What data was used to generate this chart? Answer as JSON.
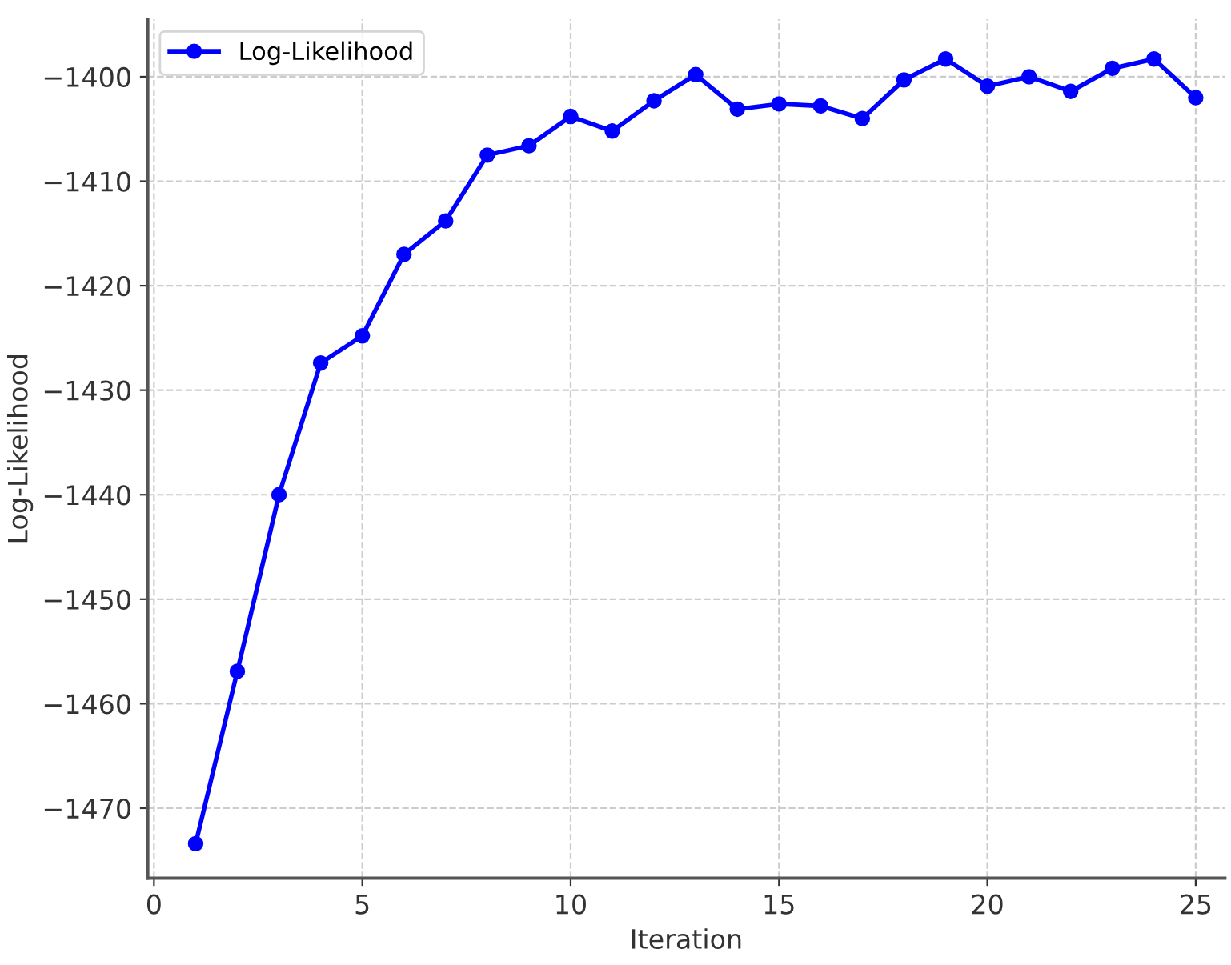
{
  "chart_data": {
    "type": "line",
    "xlabel": "Iteration",
    "ylabel": "Log-Likelihood",
    "x": [
      1,
      2,
      3,
      4,
      5,
      6,
      7,
      8,
      9,
      10,
      11,
      12,
      13,
      14,
      15,
      16,
      17,
      18,
      19,
      20,
      21,
      22,
      23,
      24,
      25
    ],
    "series": [
      {
        "name": "Log-Likelihood",
        "color": "#0000ff",
        "values": [
          -1473.4,
          -1456.9,
          -1440.0,
          -1427.4,
          -1424.8,
          -1417.0,
          -1413.8,
          -1407.5,
          -1406.6,
          -1403.8,
          -1405.2,
          -1402.3,
          -1399.8,
          -1403.1,
          -1402.6,
          -1402.8,
          -1404.0,
          -1400.3,
          -1398.3,
          -1400.9,
          -1400.0,
          -1401.4,
          -1399.2,
          -1398.3,
          -1402.0
        ]
      }
    ],
    "xlim": [
      -0.15,
      25.7
    ],
    "ylim": [
      -1476.7,
      -1394.5
    ],
    "xticks": [
      0,
      5,
      10,
      15,
      20,
      25
    ],
    "yticks": [
      {
        "value": -1470,
        "label": "−1470"
      },
      {
        "value": -1460,
        "label": "−1460"
      },
      {
        "value": -1450,
        "label": "−1450"
      },
      {
        "value": -1440,
        "label": "−1440"
      },
      {
        "value": -1430,
        "label": "−1430"
      },
      {
        "value": -1420,
        "label": "−1420"
      },
      {
        "value": -1410,
        "label": "−1410"
      },
      {
        "value": -1400,
        "label": "−1400"
      }
    ],
    "grid": true,
    "legend": "top left",
    "marker": "circle",
    "line_style": "solid"
  }
}
